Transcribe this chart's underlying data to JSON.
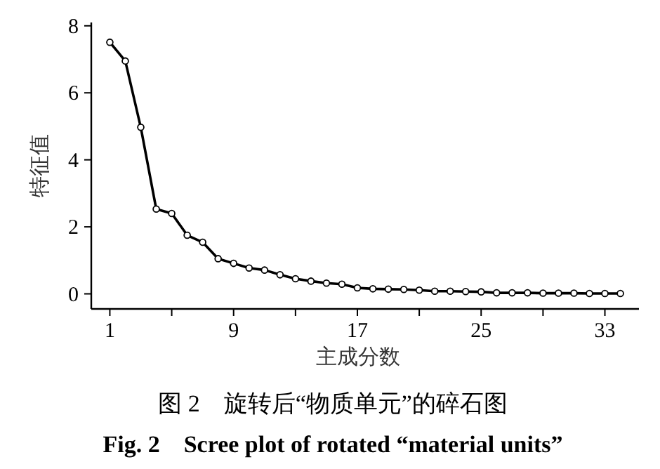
{
  "chart_data": {
    "type": "line",
    "title": "图 2　旋转后“物质单元”的碎石图",
    "subtitle": "Fig. 2　Scree plot of rotated “material units”",
    "xlabel": "主成分数",
    "ylabel": "特征值",
    "x": [
      1,
      2,
      3,
      4,
      5,
      6,
      7,
      8,
      9,
      10,
      11,
      12,
      13,
      14,
      15,
      16,
      17,
      18,
      19,
      20,
      21,
      22,
      23,
      24,
      25,
      26,
      27,
      28,
      29,
      30,
      31,
      32,
      33,
      34
    ],
    "series": [
      {
        "color": "#000000",
        "values": [
          7.51,
          6.95,
          4.97,
          2.53,
          2.4,
          1.75,
          1.54,
          1.05,
          0.91,
          0.77,
          0.71,
          0.57,
          0.45,
          0.38,
          0.32,
          0.29,
          0.18,
          0.15,
          0.14,
          0.13,
          0.11,
          0.08,
          0.08,
          0.07,
          0.06,
          0.03,
          0.03,
          0.03,
          0.02,
          0.02,
          0.02,
          0.01,
          0.01,
          0.01
        ]
      }
    ],
    "xlim": [
      -0.2,
      35.2
    ],
    "ylim": [
      -0.45,
      8.1
    ],
    "xticks": [
      1,
      {
        "value": 5,
        "label": null
      },
      9,
      {
        "value": 13,
        "label": null
      },
      17,
      {
        "value": 21,
        "label": null
      },
      25,
      {
        "value": 29,
        "label": null
      },
      33
    ],
    "yticks": [
      0,
      2,
      4,
      6,
      8
    ],
    "marker": "circle",
    "line_style": "solid",
    "grid": false
  }
}
